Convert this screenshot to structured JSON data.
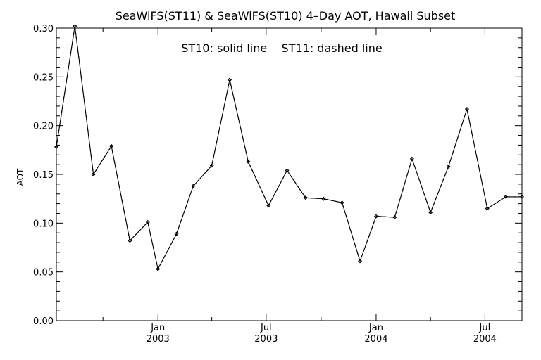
{
  "chart_data": {
    "type": "line",
    "title": "SeaWiFS(ST11) & SeaWiFS(ST10) 4–Day AOT, Hawaii Subset",
    "annotation": "ST10: solid line    ST11: dashed line",
    "ylabel": "AOT",
    "xlabel": "",
    "ylim": [
      0,
      0.3
    ],
    "xlim": [
      "2002-07-15",
      "2004-09-01"
    ],
    "grid": false,
    "y_ticks": [
      "0.00",
      "0.05",
      "0.10",
      "0.15",
      "0.20",
      "0.25",
      "0.30"
    ],
    "x_tick_labels": [
      {
        "date": "2003-01-01",
        "line1": "Jan",
        "line2": "2003"
      },
      {
        "date": "2003-07-01",
        "line1": "Jul",
        "line2": "2003"
      },
      {
        "date": "2004-01-01",
        "line1": "Jan",
        "line2": "2004"
      },
      {
        "date": "2004-07-01",
        "line1": "Jul",
        "line2": "2004"
      }
    ],
    "series": [
      {
        "name": "ST10",
        "style": "solid",
        "x": [
          "2002-07-15",
          "2002-08-15",
          "2002-09-15",
          "2002-10-15",
          "2002-11-15",
          "2002-12-15",
          "2003-01-01",
          "2003-02-01",
          "2003-03-01",
          "2003-04-01",
          "2003-05-01",
          "2003-06-01",
          "2003-07-05",
          "2003-08-05",
          "2003-09-05",
          "2003-10-05",
          "2003-11-05",
          "2003-12-05",
          "2004-01-01",
          "2004-02-01",
          "2004-03-01",
          "2004-04-01",
          "2004-05-01",
          "2004-06-01",
          "2004-07-05",
          "2004-08-05",
          "2004-09-01"
        ],
        "values": [
          0.178,
          0.302,
          0.15,
          0.179,
          0.082,
          0.101,
          0.053,
          0.089,
          0.138,
          0.159,
          0.247,
          0.163,
          0.118,
          0.154,
          0.126,
          0.125,
          0.121,
          0.061,
          0.107,
          0.106,
          0.166,
          0.111,
          0.158,
          0.217,
          0.115,
          0.127,
          0.127
        ]
      },
      {
        "name": "ST11",
        "style": "dashed",
        "x": [
          "2002-07-15",
          "2002-08-15",
          "2002-09-15",
          "2002-10-15",
          "2002-11-15",
          "2002-12-15",
          "2003-01-01",
          "2003-02-01",
          "2003-03-01",
          "2003-04-01",
          "2003-05-01",
          "2003-06-01",
          "2003-07-05",
          "2003-08-05",
          "2003-09-05",
          "2003-10-05",
          "2003-11-05",
          "2003-12-05",
          "2004-01-01",
          "2004-02-01",
          "2004-03-01",
          "2004-04-01",
          "2004-05-01",
          "2004-06-01",
          "2004-07-05",
          "2004-08-05",
          "2004-09-01"
        ],
        "values": [
          0.178,
          0.302,
          0.15,
          0.179,
          0.082,
          0.101,
          0.053,
          0.089,
          0.138,
          0.159,
          0.247,
          0.163,
          0.118,
          0.154,
          0.126,
          0.125,
          0.121,
          0.061,
          0.107,
          0.106,
          0.166,
          0.111,
          0.158,
          0.217,
          0.115,
          0.127,
          0.127
        ]
      }
    ]
  }
}
